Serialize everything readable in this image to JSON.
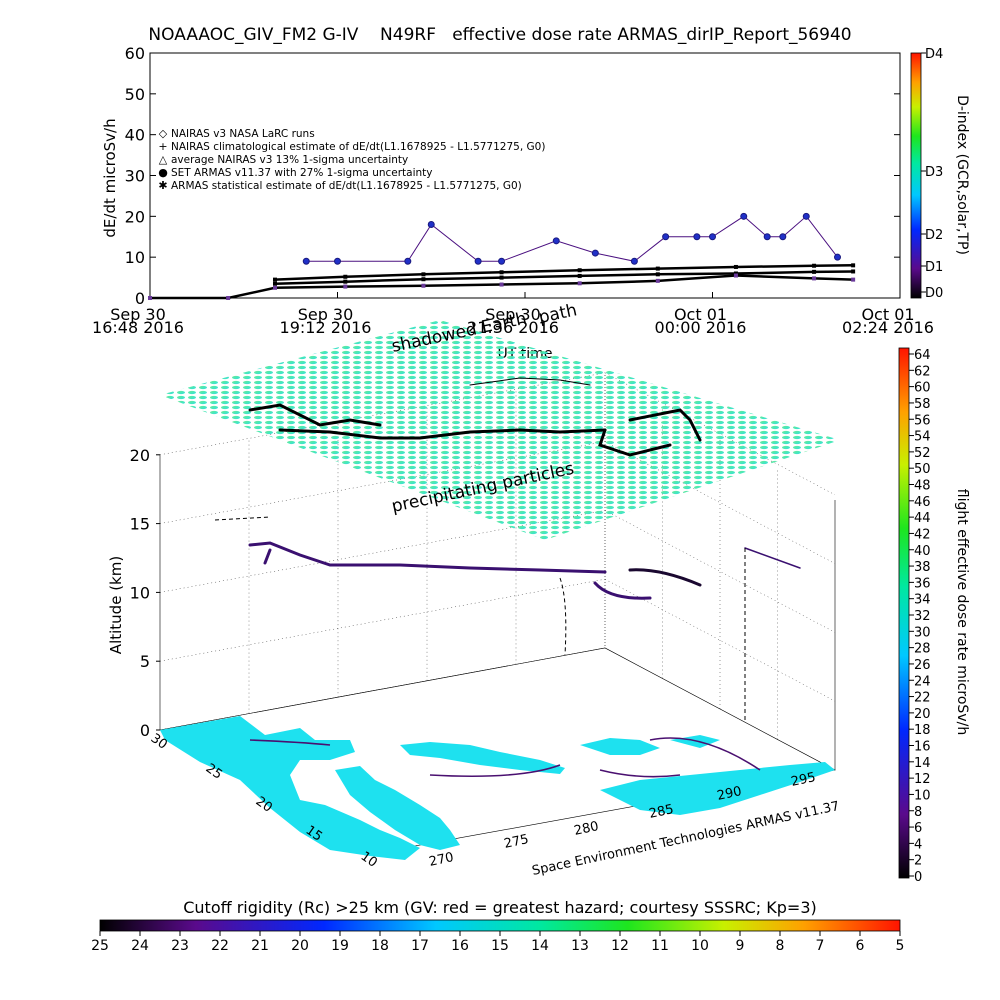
{
  "title": "NOAAAOC_GIV_FM2 G-IV    N49RF   effective dose rate ARMAS_dirIP_Report_56940",
  "top_chart": {
    "ylabel": "dE/dt microSv/h",
    "xlabel": "UT time",
    "yticks": [
      "0",
      "10",
      "20",
      "30",
      "40",
      "50",
      "60"
    ],
    "xticks": [
      {
        "l1": "Sep 30",
        "l2": "16:48 2016"
      },
      {
        "l1": "Sep 30",
        "l2": "19:12 2016"
      },
      {
        "l1": "Sep 30",
        "l2": "21:36 2016"
      },
      {
        "l1": "Oct 01",
        "l2": "00:00 2016"
      },
      {
        "l1": "Oct 01",
        "l2": "02:24 2016"
      }
    ],
    "legend": [
      {
        "symbol": "◇",
        "text": "NAIRAS v3 NASA LaRC runs"
      },
      {
        "symbol": "+",
        "text": "NAIRAS climatological estimate of dE/dt(L1.1678925 - L1.5771275, G0)"
      },
      {
        "symbol": "△",
        "text": "average NAIRAS v3 13% 1-sigma uncertainty"
      },
      {
        "symbol": "●",
        "text": "SET ARMAS v11.37 with 27% 1-sigma uncertainty"
      },
      {
        "symbol": "✱",
        "text": "ARMAS statistical estimate of dE/dt(L1.1678925 - L1.5771275, G0)"
      }
    ],
    "dindex_label": "D-index (GCR,solar,TP)",
    "dindex_ticks": [
      "D4",
      "D3",
      "D2",
      "D1",
      "D0"
    ]
  },
  "chart_data": [
    {
      "type": "scatter",
      "title": "NOAAAOC_GIV_FM2 G-IV    N49RF   effective dose rate ARMAS_dirIP_Report_56940",
      "xlabel": "UT time",
      "ylabel": "dE/dt microSv/h",
      "ylim": [
        0,
        60
      ],
      "x_units": "hours since Sep 30 16:48 2016 UT",
      "xlim": [
        0,
        9.6
      ],
      "series": [
        {
          "name": "SET ARMAS v11.37 with 27% 1-sigma uncertainty",
          "x": [
            2.0,
            2.4,
            3.3,
            3.6,
            4.2,
            4.5,
            5.2,
            5.7,
            6.2,
            6.6,
            7.0,
            7.2,
            7.6,
            7.9,
            8.1,
            8.4,
            8.8
          ],
          "y": [
            9,
            9,
            9,
            18,
            9,
            9,
            14,
            11,
            9,
            15,
            15,
            15,
            20,
            15,
            15,
            20,
            10
          ]
        },
        {
          "name": "ARMAS statistical estimate of dE/dt(L1.1678925 - L1.5771275, G0)",
          "x": [
            1.6,
            2.5,
            3.5,
            4.5,
            5.5,
            6.5,
            7.5,
            8.5,
            9.0
          ],
          "y": [
            4.5,
            5.2,
            5.8,
            6.3,
            6.8,
            7.2,
            7.6,
            7.9,
            8.0
          ]
        },
        {
          "name": "NAIRAS climatological estimate of dE/dt(L1.1678925 - L1.5771275, G0)",
          "x": [
            1.6,
            2.5,
            3.5,
            4.5,
            5.5,
            6.5,
            7.5,
            8.5,
            9.0
          ],
          "y": [
            3.5,
            4.0,
            4.6,
            5.0,
            5.4,
            5.8,
            6.0,
            6.4,
            6.5
          ]
        },
        {
          "name": "NAIRAS v3 NASA LaRC runs",
          "x": [
            0,
            1.0,
            1.6,
            2.5,
            3.5,
            4.5,
            5.5,
            6.5,
            7.5,
            8.5,
            9.0
          ],
          "y": [
            0,
            0,
            2.5,
            2.8,
            3.0,
            3.3,
            3.6,
            4.2,
            5.5,
            4.8,
            4.5
          ]
        }
      ]
    },
    {
      "type": "heatmap",
      "title": "flight effective dose rate microSv/h",
      "zlabel": "Altitude (km)",
      "zticks": [
        0,
        5,
        10,
        15,
        20
      ],
      "lat_ticks": [
        10,
        15,
        20,
        25,
        30
      ],
      "lon_ticks": [
        270,
        275,
        280,
        285,
        290,
        295
      ],
      "colorbar_ticks": [
        0,
        2,
        4,
        6,
        8,
        10,
        12,
        14,
        16,
        18,
        20,
        22,
        24,
        26,
        28,
        30,
        32,
        34,
        36,
        38,
        40,
        42,
        44,
        46,
        48,
        50,
        52,
        54,
        56,
        58,
        60,
        62,
        64
      ]
    },
    {
      "type": "heatmap",
      "title": "Cutoff rigidity (Rc) >25 km (GV: red = greatest hazard; courtesy SSSRC; Kp=3)",
      "colorbar_ticks": [
        25,
        24,
        23,
        22,
        21,
        20,
        19,
        18,
        17,
        16,
        15,
        14,
        13,
        12,
        11,
        10,
        9,
        8,
        7,
        6,
        5
      ]
    }
  ],
  "plot3d": {
    "shadowed_label": "shadowed Earth",
    "path_label": "path",
    "layer_label": "precipitating particles",
    "zlabel": "Altitude (km)",
    "zticks": [
      "0",
      "5",
      "10",
      "15",
      "20"
    ],
    "lat_ticks": [
      "10",
      "15",
      "20",
      "25",
      "30"
    ],
    "lon_ticks": [
      "270",
      "275",
      "280",
      "285",
      "290",
      "295"
    ],
    "credit": "Space Environment Technologies ARMAS v11.37"
  },
  "colorbar_right": {
    "label": "flight effective dose rate microSv/h",
    "ticks": [
      "0",
      "2",
      "4",
      "6",
      "8",
      "10",
      "12",
      "14",
      "16",
      "18",
      "20",
      "22",
      "24",
      "26",
      "28",
      "30",
      "32",
      "34",
      "36",
      "38",
      "40",
      "42",
      "44",
      "46",
      "48",
      "50",
      "52",
      "54",
      "56",
      "58",
      "60",
      "62",
      "64"
    ]
  },
  "colorbar_bottom": {
    "label": "Cutoff rigidity (Rc) >25 km (GV: red = greatest hazard; courtesy SSSRC; Kp=3)",
    "ticks": [
      "25",
      "24",
      "23",
      "22",
      "21",
      "20",
      "19",
      "18",
      "17",
      "16",
      "15",
      "14",
      "13",
      "12",
      "11",
      "10",
      "9",
      "8",
      "7",
      "6",
      "5"
    ]
  }
}
